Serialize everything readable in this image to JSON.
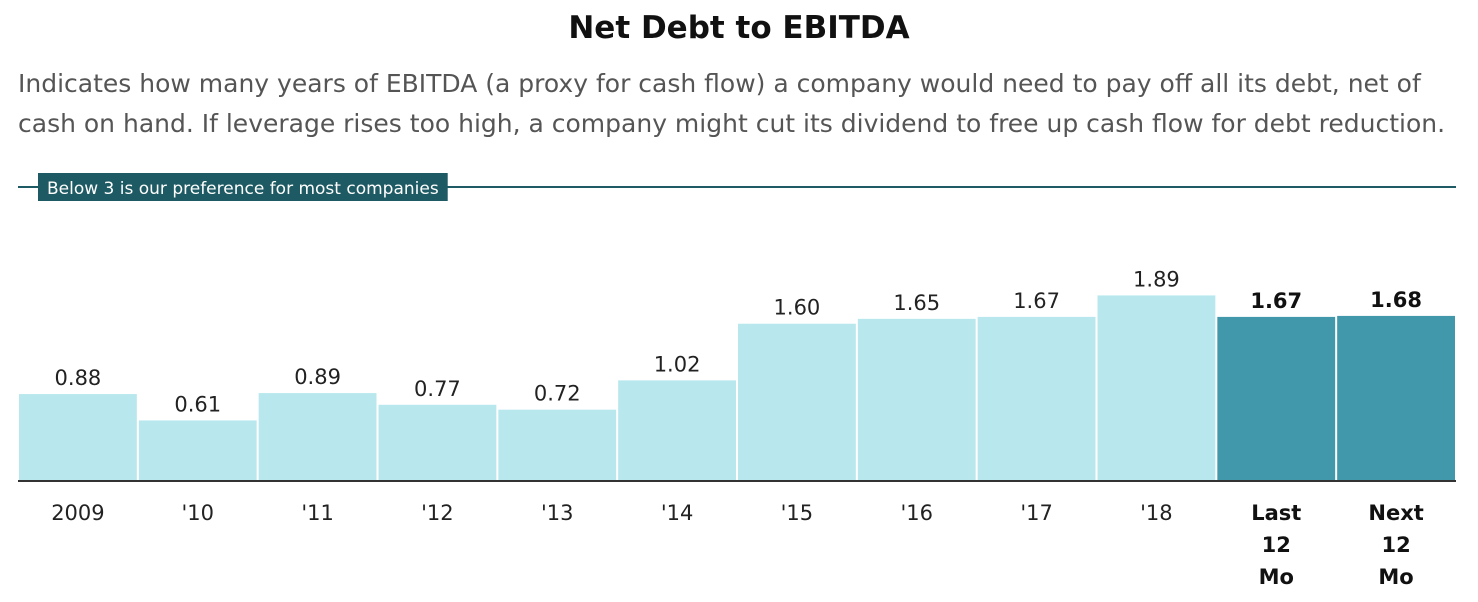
{
  "title": "Net Debt to EBITDA",
  "subtitle": "Indicates how many years of EBITDA (a proxy for cash flow) a company would need to pay off all its debt, net of cash on hand. If leverage rises too high, a company might cut its dividend to free up cash flow for debt reduction.",
  "colors": {
    "bar": "#b8e8ee",
    "bar_highlight": "#4098aa",
    "reference_line": "#1e5a63",
    "axis": "#333333"
  },
  "chart_data": {
    "type": "bar",
    "title": "Net Debt to EBITDA",
    "xlabel": "",
    "ylabel": "",
    "categories": [
      "2009",
      "'10",
      "'11",
      "'12",
      "'13",
      "'14",
      "'15",
      "'16",
      "'17",
      "'18",
      "Last 12 Mo",
      "Next 12 Mo"
    ],
    "values": [
      0.88,
      0.61,
      0.89,
      0.77,
      0.72,
      1.02,
      1.6,
      1.65,
      1.67,
      1.89,
      1.67,
      1.68
    ],
    "value_labels": [
      "0.88",
      "0.61",
      "0.89",
      "0.77",
      "0.72",
      "1.02",
      "1.60",
      "1.65",
      "1.67",
      "1.89",
      "1.67",
      "1.68"
    ],
    "highlighted": [
      false,
      false,
      false,
      false,
      false,
      false,
      false,
      false,
      false,
      false,
      true,
      true
    ],
    "reference_line": {
      "value": 3,
      "label": "Below 3 is our preference for most companies"
    },
    "ylim": [
      0,
      3
    ],
    "grid": false,
    "legend": "none"
  }
}
